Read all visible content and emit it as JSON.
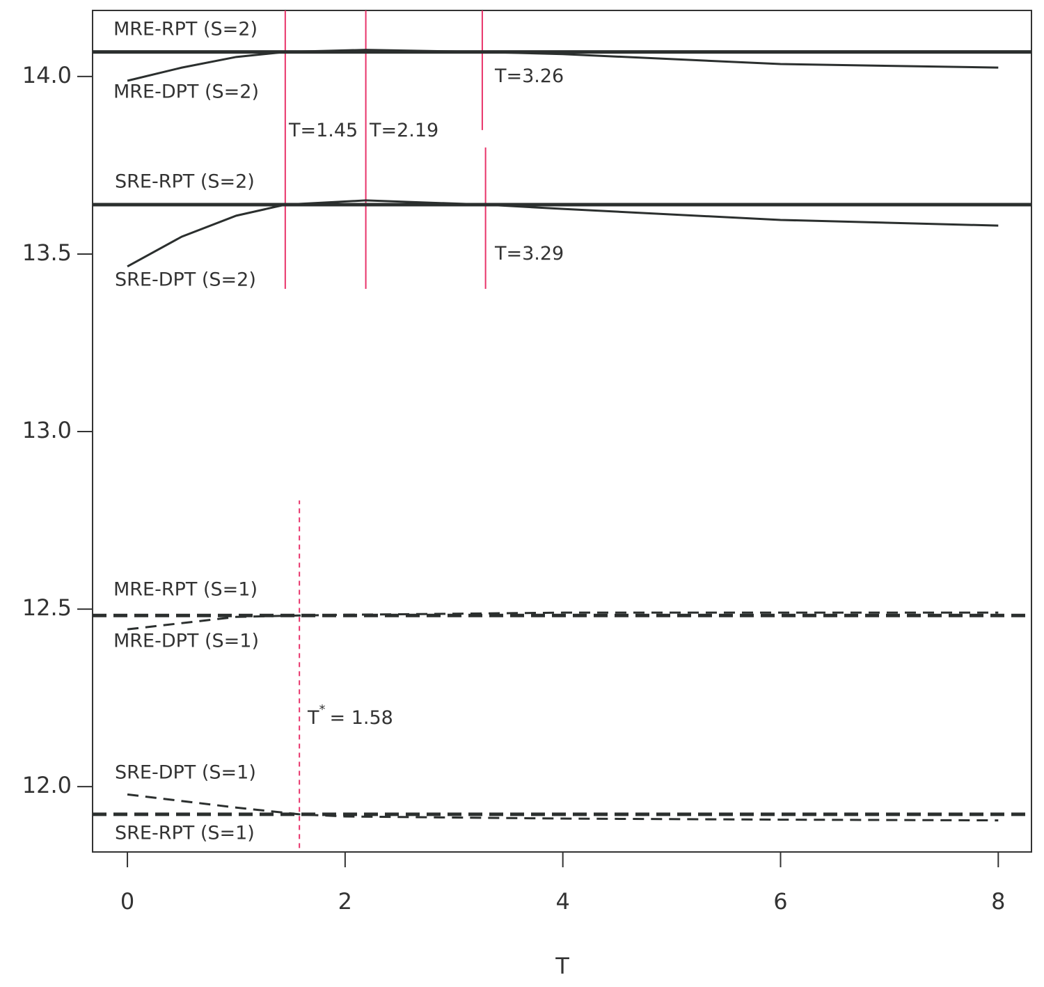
{
  "chart_data": {
    "type": "line",
    "x_label": "T",
    "xlim": [
      -0.32,
      8.305
    ],
    "ylim": [
      11.816,
      14.186
    ],
    "xticks": [
      0,
      2,
      4,
      6,
      8
    ],
    "yticks": [
      {
        "value": 12,
        "label": "12.0"
      },
      12.5,
      {
        "value": 13,
        "label": "13.0"
      },
      13.5,
      {
        "value": 14,
        "label": "14.0"
      }
    ],
    "color": "#2b2f2e",
    "vline_color": "#e8336a",
    "hlines": [
      {
        "name": "MRE-RPT (S=2)",
        "value": 14.069,
        "dashed": false
      },
      {
        "name": "SRE-RPT (S=2)",
        "value": 13.639,
        "dashed": false
      },
      {
        "name": "MRE-RPT (S=1)",
        "value": 12.482,
        "dashed": true
      },
      {
        "name": "SRE-RPT (S=1)",
        "value": 11.922,
        "dashed": true
      }
    ],
    "series": [
      {
        "name": "MRE-DPT (S=2)",
        "dashed": false,
        "x": [
          0,
          0.5,
          1,
          1.45,
          2.19,
          3.26,
          4,
          6,
          8
        ],
        "values": [
          13.988,
          14.025,
          14.055,
          14.069,
          14.075,
          14.069,
          14.063,
          14.035,
          14.025
        ]
      },
      {
        "name": "SRE-DPT (S=2)",
        "dashed": false,
        "x": [
          0,
          0.5,
          1,
          1.45,
          2.19,
          3.29,
          4,
          6,
          8
        ],
        "values": [
          13.465,
          13.549,
          13.608,
          13.639,
          13.651,
          13.639,
          13.627,
          13.596,
          13.58
        ]
      },
      {
        "name": "MRE-DPT (S=1)",
        "dashed": true,
        "x": [
          0,
          1,
          1.58,
          2,
          4,
          6,
          8
        ],
        "values": [
          12.443,
          12.478,
          12.482,
          12.484,
          12.49,
          12.49,
          12.49
        ]
      },
      {
        "name": "SRE-DPT (S=1)",
        "dashed": true,
        "x": [
          0,
          1,
          1.58,
          2,
          4,
          6,
          8
        ],
        "values": [
          11.978,
          11.941,
          11.922,
          11.916,
          11.91,
          11.907,
          11.905
        ]
      }
    ],
    "vlines": [
      {
        "x": 1.45,
        "ymin": 13.402,
        "ymax": 14.186,
        "dashed": false,
        "label": "T=1.45"
      },
      {
        "x": 2.19,
        "ymin": 13.402,
        "ymax": 14.186,
        "dashed": false,
        "label": "T=2.19"
      },
      {
        "x": 3.26,
        "ymin": 13.849,
        "ymax": 14.186,
        "dashed": false,
        "label": "T=3.26"
      },
      {
        "x": 3.29,
        "ymin": 13.402,
        "ymax": 13.8,
        "dashed": false,
        "label": "T=3.29"
      },
      {
        "x": 1.58,
        "ymin": 11.827,
        "ymax": 12.806,
        "dashed": true,
        "label": "T",
        "label_sup": "*",
        "label_rest": "= 1.58"
      }
    ]
  }
}
